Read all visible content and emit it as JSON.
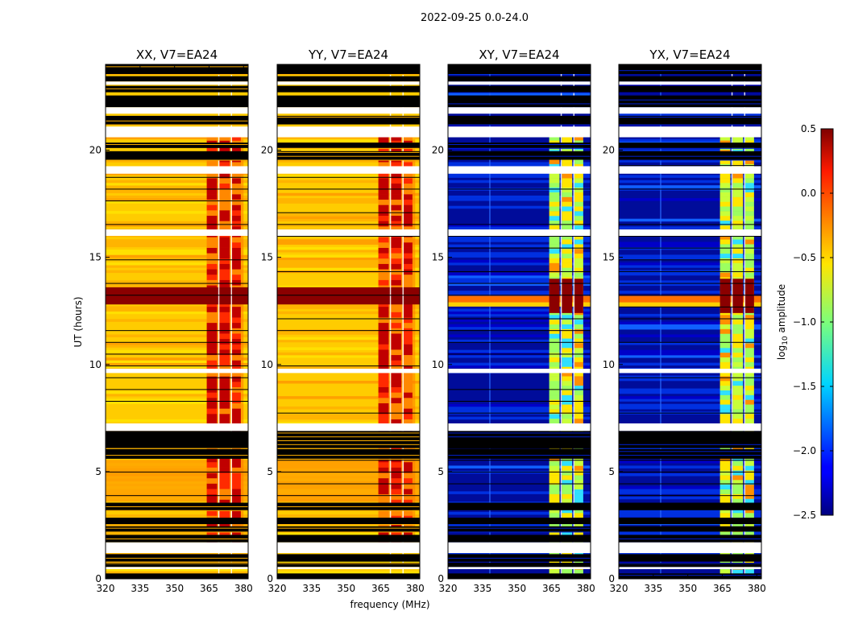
{
  "chart_data": {
    "type": "heatmap",
    "suptitle": "2022-09-25 0.0-24.0",
    "xlabel": "frequency (MHz)",
    "ylabel": "UT (hours)",
    "xlim": [
      320,
      382
    ],
    "ylim": [
      0,
      24
    ],
    "xticks": [
      320,
      335,
      350,
      365,
      380
    ],
    "yticks": [
      0,
      5,
      10,
      15,
      20
    ],
    "panels": [
      {
        "title": "XX, V7=EA24",
        "kind": "auto"
      },
      {
        "title": "YY, V7=EA24",
        "kind": "auto"
      },
      {
        "title": "XY, V7=EA24",
        "kind": "cross"
      },
      {
        "title": "YX, V7=EA24",
        "kind": "cross"
      }
    ],
    "colorbar": {
      "label": "log10 amplitude",
      "label_base": "log",
      "label_sub": "10",
      "label_rest": " amplitude",
      "range": [
        -2.5,
        0.5
      ],
      "ticks": [
        "0.5",
        "0.0",
        "−0.5",
        "−1.0",
        "−1.5",
        "−2.0",
        "−2.5"
      ],
      "tick_values": [
        0.5,
        0.0,
        -0.5,
        -1.0,
        -1.5,
        -2.0,
        -2.5
      ]
    },
    "rfi_band_mhz": [
      364,
      380
    ],
    "rfi_band_columns_mhz": [
      [
        364,
        368.5
      ],
      [
        369.5,
        374
      ],
      [
        375,
        378.8
      ]
    ],
    "flagged_ut_ranges": [
      [
        0.0,
        0.25
      ],
      [
        0.55,
        0.75
      ],
      [
        0.8,
        1.15
      ],
      [
        1.7,
        2.05
      ],
      [
        2.2,
        2.45
      ],
      [
        2.55,
        2.85
      ],
      [
        3.2,
        3.55
      ],
      [
        5.6,
        6.05
      ],
      [
        6.1,
        6.9
      ],
      [
        19.55,
        19.95
      ],
      [
        20.1,
        20.35
      ],
      [
        21.2,
        21.6
      ],
      [
        22.0,
        22.55
      ],
      [
        22.7,
        23.0
      ],
      [
        23.2,
        23.45
      ],
      [
        23.55,
        24.0
      ]
    ],
    "white_gap_ut_ranges": [
      [
        0.45,
        0.55
      ],
      [
        1.2,
        1.7
      ],
      [
        6.9,
        7.25
      ],
      [
        9.6,
        9.8
      ],
      [
        16.0,
        16.3
      ],
      [
        18.9,
        19.25
      ],
      [
        20.6,
        21.1
      ],
      [
        21.7,
        22.0
      ],
      [
        23.05,
        23.2
      ]
    ],
    "strong_band_ut": [
      12.8,
      13.6
    ]
  }
}
